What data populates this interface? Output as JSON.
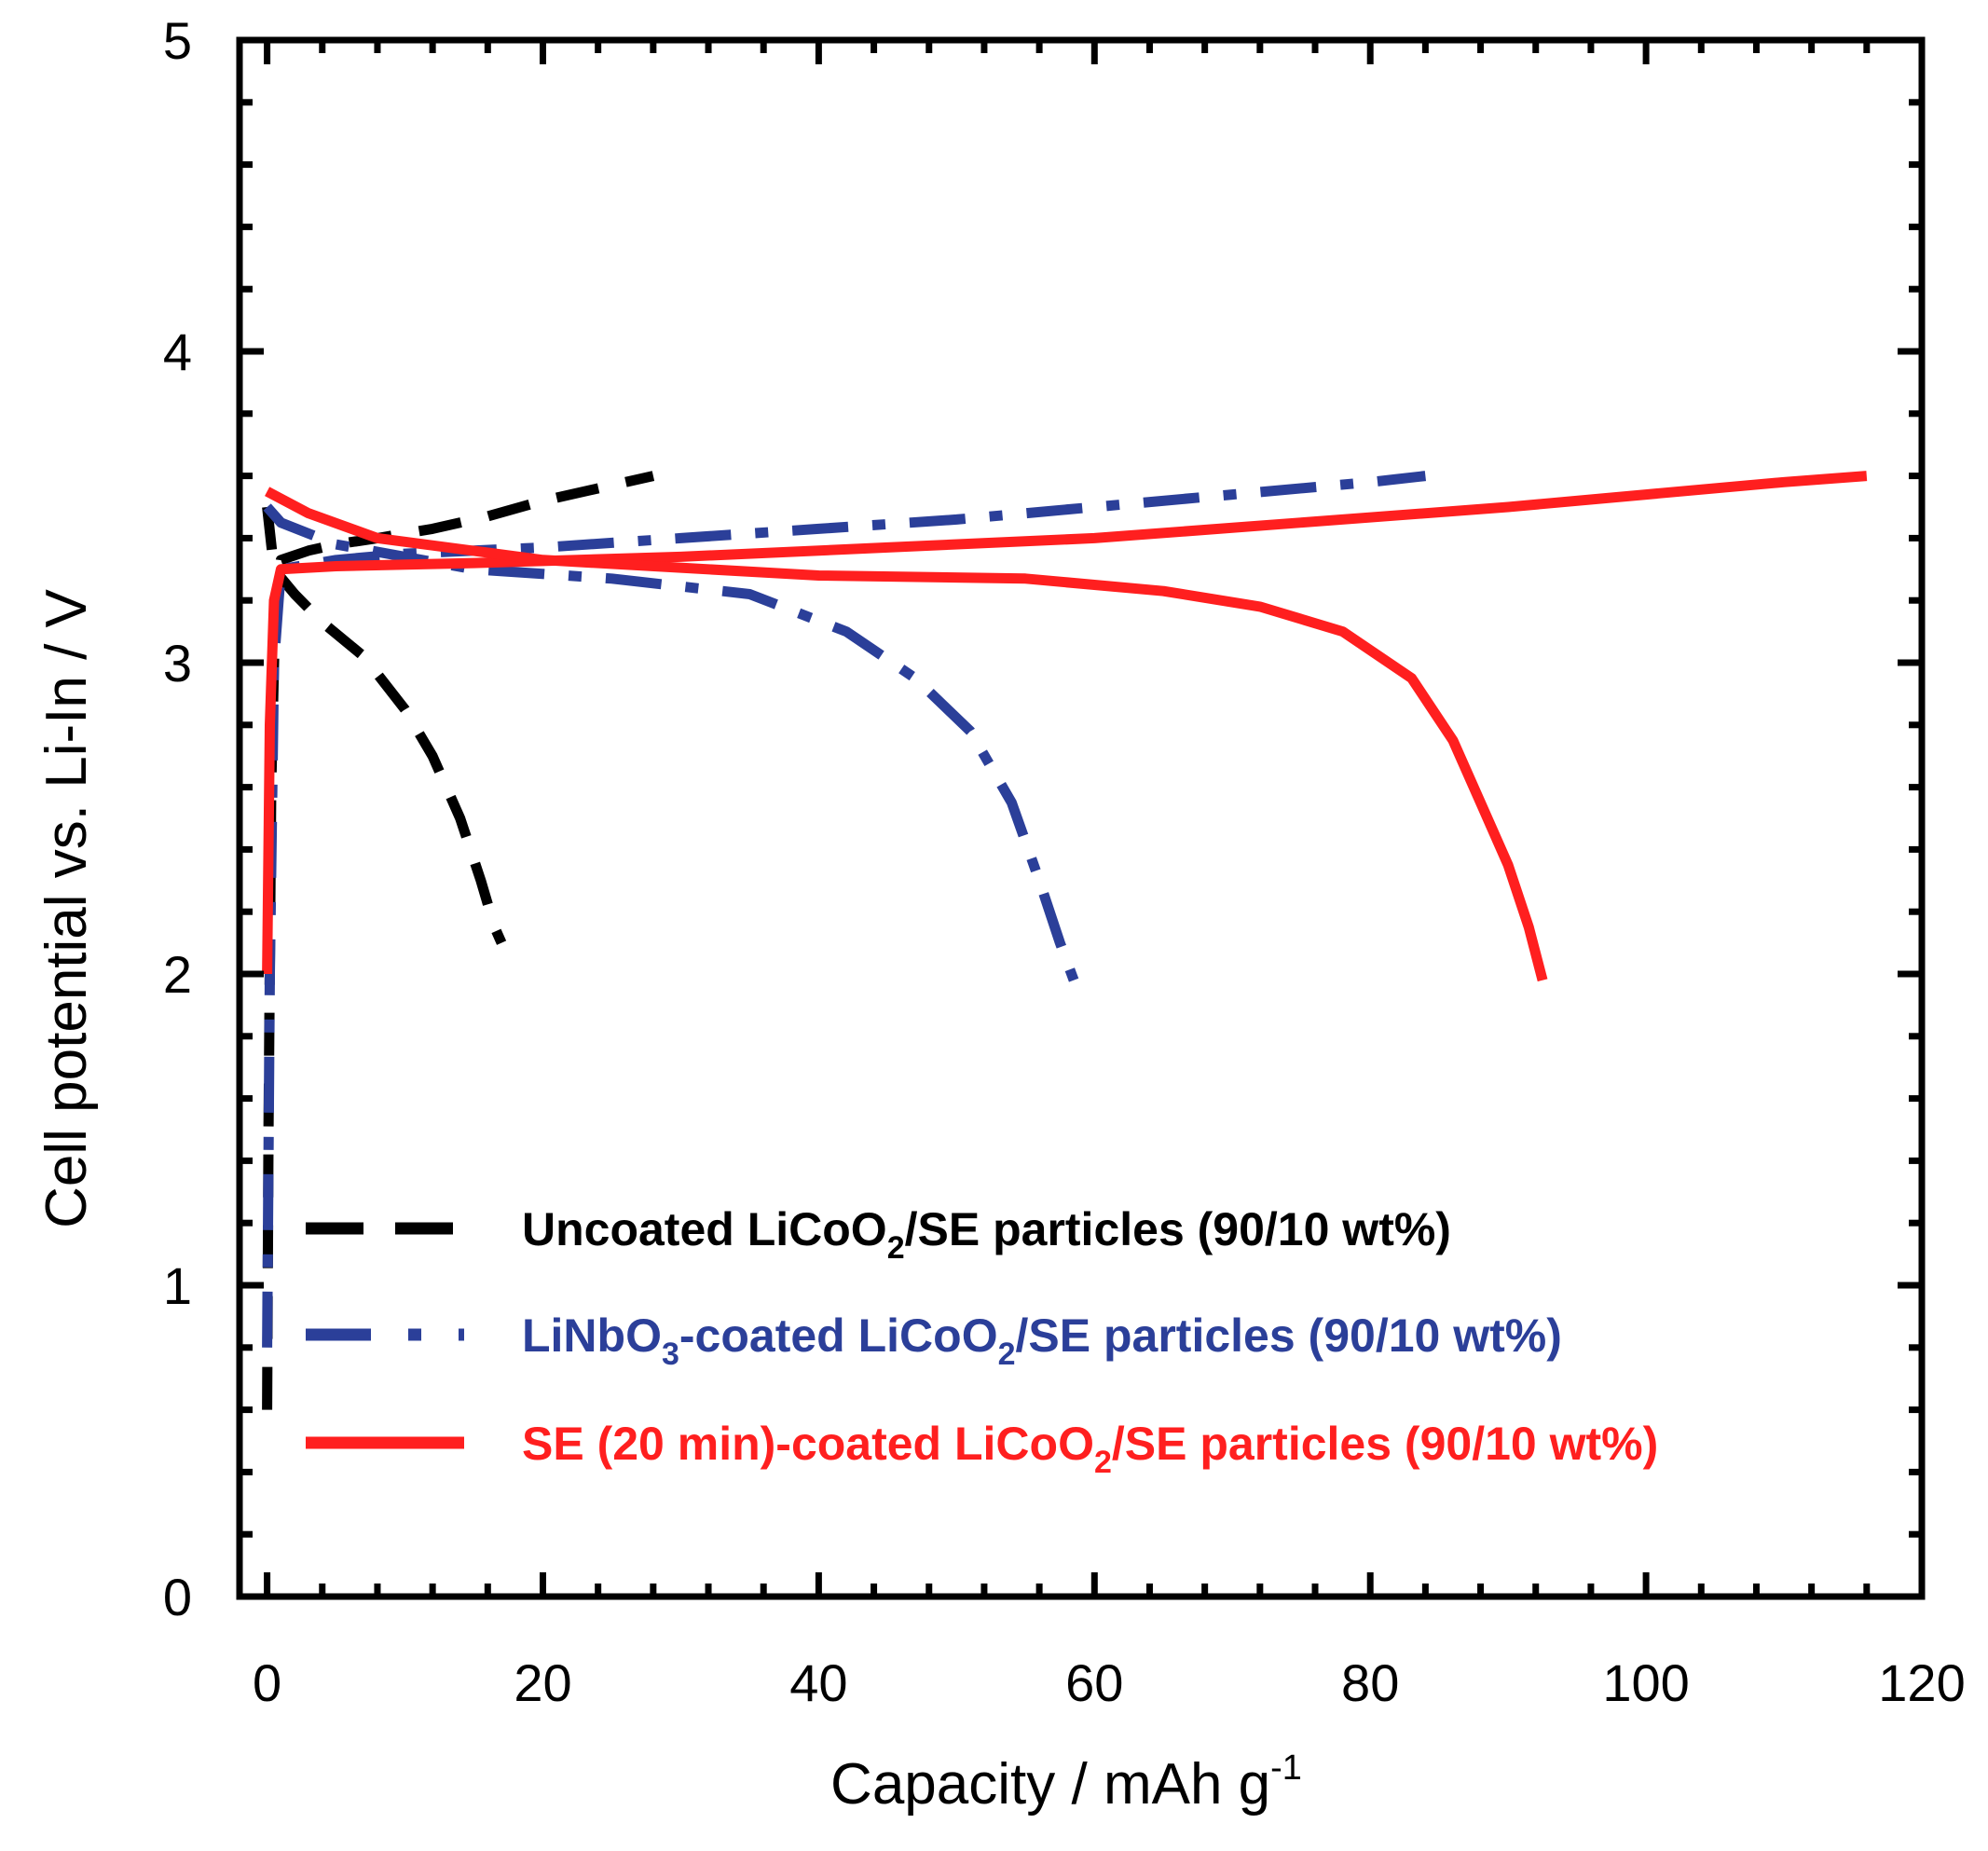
{
  "chart_data": {
    "type": "line",
    "xlabel": "Capacity / mAh g",
    "xlabel_superscript": "-1",
    "ylabel": "Cell potential vs. Li-In / V",
    "xlim": [
      -2,
      120
    ],
    "ylim": [
      0,
      5
    ],
    "x_ticks": [
      "0",
      "20",
      "40",
      "60",
      "80",
      "100",
      "120"
    ],
    "y_ticks": [
      "0",
      "1",
      "2",
      "3",
      "4",
      "5"
    ],
    "grid": false,
    "legend_position": "bottom-left",
    "series": [
      {
        "name": "Uncoated LiCoO2/SE particles  (90/10 wt%)",
        "legend_parts": [
          "Uncoated LiCoO",
          "2",
          "/SE particles  (90/10 wt%)"
        ],
        "color": "#000000",
        "style": "dashed",
        "charge": {
          "x": [
            0.0,
            0.1,
            0.3,
            0.6,
            1.0,
            3,
            5,
            8,
            12,
            16,
            20,
            24,
            28
          ],
          "y": [
            0.6,
            1.5,
            2.6,
            3.2,
            3.33,
            3.36,
            3.38,
            3.4,
            3.43,
            3.47,
            3.52,
            3.56,
            3.6
          ]
        },
        "discharge": {
          "x": [
            0.0,
            0.5,
            2,
            4,
            7,
            10,
            12,
            14,
            15.5,
            16.5,
            17
          ],
          "y": [
            3.5,
            3.3,
            3.22,
            3.13,
            3.02,
            2.85,
            2.7,
            2.5,
            2.3,
            2.15,
            2.1
          ]
        }
      },
      {
        "name": "LiNbO3-coated LiCoO2/SE particles  (90/10 wt%)",
        "legend_parts": [
          "LiNbO",
          "3",
          "-coated LiCoO",
          "2",
          "/SE particles  (90/10 wt%)"
        ],
        "color": "#2b3f99",
        "style": "dashdot",
        "charge": {
          "x": [
            0.0,
            0.2,
            0.5,
            1.0,
            5,
            10,
            20,
            30,
            40,
            50,
            60,
            70,
            80,
            84
          ],
          "y": [
            0.8,
            2.0,
            3.0,
            3.3,
            3.33,
            3.35,
            3.37,
            3.4,
            3.43,
            3.46,
            3.5,
            3.54,
            3.58,
            3.6
          ]
        },
        "discharge": {
          "x": [
            0.0,
            1,
            5,
            15,
            25,
            35,
            42,
            47,
            51,
            54,
            56,
            57.5,
            58.5
          ],
          "y": [
            3.5,
            3.45,
            3.38,
            3.3,
            3.27,
            3.22,
            3.1,
            2.95,
            2.78,
            2.55,
            2.3,
            2.1,
            1.98
          ]
        }
      },
      {
        "name": "SE (20 min)-coated LiCoO2/SE particles (90/10 wt%)",
        "legend_parts": [
          "SE (20 min)-coated LiCoO",
          "2",
          "/SE particles (90/10 wt%)"
        ],
        "color": "#ff1f1f",
        "style": "solid",
        "charge": {
          "x": [
            0.0,
            0.2,
            0.5,
            1.0,
            5,
            15,
            30,
            45,
            60,
            75,
            90,
            100,
            110,
            116
          ],
          "y": [
            2.0,
            2.8,
            3.2,
            3.3,
            3.31,
            3.32,
            3.34,
            3.37,
            3.4,
            3.45,
            3.5,
            3.54,
            3.58,
            3.6
          ]
        },
        "discharge": {
          "x": [
            0.0,
            3,
            8,
            20,
            40,
            55,
            65,
            72,
            78,
            83,
            86,
            88,
            90,
            91.5,
            92.5
          ],
          "y": [
            3.55,
            3.48,
            3.4,
            3.33,
            3.28,
            3.27,
            3.23,
            3.18,
            3.1,
            2.95,
            2.75,
            2.55,
            2.35,
            2.15,
            1.98
          ]
        }
      }
    ]
  }
}
